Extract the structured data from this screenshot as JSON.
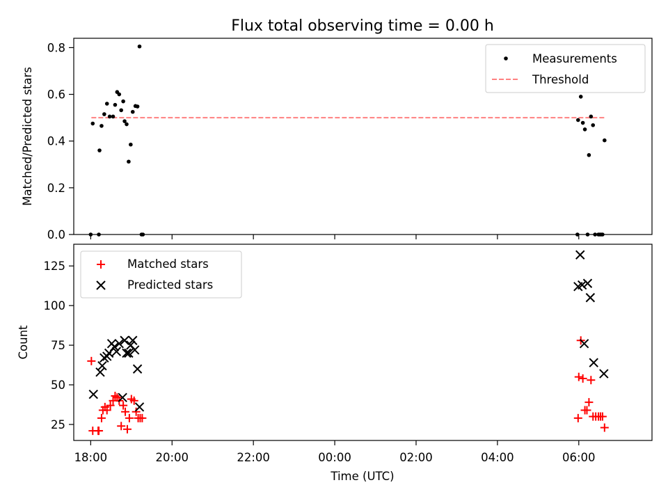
{
  "chart_data": [
    {
      "type": "scatter",
      "title": "Flux total observing time = 0.00 h",
      "ylabel": "Matched/Predicted stars",
      "xlim": [
        "17:35",
        "07:48"
      ],
      "ylim": [
        0,
        0.84
      ],
      "yticks": [
        "0.0",
        "0.2",
        "0.4",
        "0.6",
        "0.8"
      ],
      "grid": false,
      "legend": {
        "position": "top-right",
        "entries": [
          "Measurements",
          "Threshold"
        ]
      },
      "series": [
        {
          "name": "Measurements",
          "marker": "dot",
          "color": "#000000",
          "points": [
            [
              "18:00",
              0.0
            ],
            [
              "18:03",
              0.475
            ],
            [
              "18:12",
              0.0
            ],
            [
              "18:13",
              0.36
            ],
            [
              "18:16",
              0.465
            ],
            [
              "18:20",
              0.515
            ],
            [
              "18:24",
              0.56
            ],
            [
              "18:28",
              0.505
            ],
            [
              "18:33",
              0.505
            ],
            [
              "18:36",
              0.555
            ],
            [
              "18:39",
              0.61
            ],
            [
              "18:42",
              0.6
            ],
            [
              "18:45",
              0.532
            ],
            [
              "18:48",
              0.57
            ],
            [
              "18:50",
              0.485
            ],
            [
              "18:53",
              0.472
            ],
            [
              "18:56",
              0.312
            ],
            [
              "18:59",
              0.385
            ],
            [
              "19:02",
              0.525
            ],
            [
              "19:06",
              0.55
            ],
            [
              "19:09",
              0.548
            ],
            [
              "19:12",
              0.805
            ],
            [
              "19:15",
              0.0
            ],
            [
              "19:17",
              0.0
            ],
            [
              "05:58",
              0.0
            ],
            [
              "05:59",
              0.49
            ],
            [
              "06:03",
              0.59
            ],
            [
              "06:06",
              0.478
            ],
            [
              "06:09",
              0.45
            ],
            [
              "06:13",
              0.0
            ],
            [
              "06:15",
              0.34
            ],
            [
              "06:18",
              0.505
            ],
            [
              "06:21",
              0.468
            ],
            [
              "06:24",
              0.0
            ],
            [
              "06:29",
              0.0
            ],
            [
              "06:31",
              0.0
            ],
            [
              "06:33",
              0.0
            ],
            [
              "06:35",
              0.0
            ],
            [
              "06:38",
              0.403
            ]
          ]
        },
        {
          "name": "Threshold",
          "style": "dashed",
          "color": "#ff8080",
          "points": [
            [
              "18:01",
              0.5
            ],
            [
              "06:38",
              0.5
            ]
          ]
        }
      ]
    },
    {
      "type": "scatter",
      "xlabel": "Time (UTC)",
      "ylabel": "Count",
      "xlim": [
        "17:35",
        "07:48"
      ],
      "xticks": [
        "18:00",
        "20:00",
        "22:00",
        "00:00",
        "02:00",
        "04:00",
        "06:00"
      ],
      "ylim": [
        14.9,
        138.7
      ],
      "yticks": [
        "25",
        "50",
        "75",
        "100",
        "125"
      ],
      "grid": false,
      "legend": {
        "position": "top-left",
        "entries": [
          "Matched stars",
          "Predicted stars"
        ]
      },
      "series": [
        {
          "name": "Matched stars",
          "marker": "plus",
          "color": "#ff0000",
          "points": [
            [
              "18:01",
              65
            ],
            [
              "18:03",
              21
            ],
            [
              "18:11",
              21
            ],
            [
              "18:12",
              21
            ],
            [
              "18:16",
              29
            ],
            [
              "18:18",
              34
            ],
            [
              "18:21",
              36
            ],
            [
              "18:24",
              34
            ],
            [
              "18:29",
              37
            ],
            [
              "18:33",
              40
            ],
            [
              "18:36",
              43
            ],
            [
              "18:39",
              42
            ],
            [
              "18:42",
              40
            ],
            [
              "18:45",
              24
            ],
            [
              "18:48",
              37
            ],
            [
              "18:51",
              33
            ],
            [
              "18:54",
              22
            ],
            [
              "18:57",
              29
            ],
            [
              "19:00",
              41
            ],
            [
              "19:04",
              40
            ],
            [
              "19:07",
              33
            ],
            [
              "19:10",
              29
            ],
            [
              "19:13",
              29
            ],
            [
              "19:16",
              29
            ],
            [
              "05:59",
              29
            ],
            [
              "06:00",
              55
            ],
            [
              "06:03",
              78
            ],
            [
              "06:06",
              54
            ],
            [
              "06:09",
              34
            ],
            [
              "06:12",
              34
            ],
            [
              "06:15",
              39
            ],
            [
              "06:18",
              53
            ],
            [
              "06:21",
              30
            ],
            [
              "06:25",
              30
            ],
            [
              "06:29",
              30
            ],
            [
              "06:32",
              30
            ],
            [
              "06:35",
              30
            ],
            [
              "06:38",
              23
            ]
          ]
        },
        {
          "name": "Predicted stars",
          "marker": "x",
          "color": "#000000",
          "points": [
            [
              "18:04",
              44
            ],
            [
              "18:14",
              58
            ],
            [
              "18:17",
              62
            ],
            [
              "18:20",
              67
            ],
            [
              "18:24",
              68
            ],
            [
              "18:27",
              70
            ],
            [
              "18:31",
              76
            ],
            [
              "18:35",
              74
            ],
            [
              "18:38",
              71
            ],
            [
              "18:42",
              76
            ],
            [
              "18:47",
              42
            ],
            [
              "18:50",
              78
            ],
            [
              "18:53",
              70
            ],
            [
              "18:56",
              70
            ],
            [
              "18:59",
              75
            ],
            [
              "19:02",
              78
            ],
            [
              "19:05",
              72
            ],
            [
              "19:09",
              60
            ],
            [
              "19:12",
              36
            ],
            [
              "05:59",
              112
            ],
            [
              "06:02",
              132
            ],
            [
              "06:05",
              113
            ],
            [
              "06:08",
              76
            ],
            [
              "06:13",
              114
            ],
            [
              "06:17",
              105
            ],
            [
              "06:22",
              64
            ],
            [
              "06:37",
              57
            ]
          ]
        }
      ]
    }
  ]
}
